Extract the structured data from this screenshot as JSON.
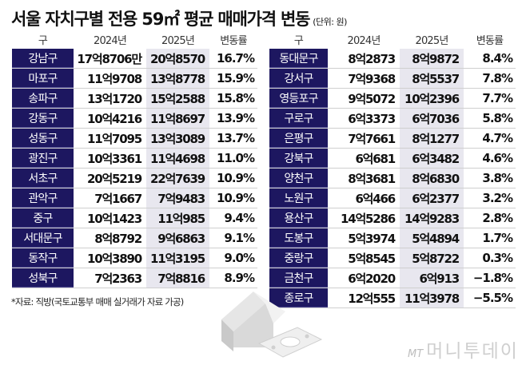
{
  "title": "서울 자치구별 전용 59㎡ 평균 매매가격 변동",
  "unit": "(단위: 원)",
  "headers": {
    "district": "구",
    "y2024": "2024년",
    "y2025": "2025년",
    "change": "변동률"
  },
  "left_rows": [
    {
      "district": "강남구",
      "y2024": "17억8706만",
      "y2025": "20억8570",
      "change": "16.7%"
    },
    {
      "district": "마포구",
      "y2024": "11억9708",
      "y2025": "13억8778",
      "change": "15.9%"
    },
    {
      "district": "송파구",
      "y2024": "13억1720",
      "y2025": "15억2588",
      "change": "15.8%"
    },
    {
      "district": "강동구",
      "y2024": "10억4216",
      "y2025": "11억8697",
      "change": "13.9%"
    },
    {
      "district": "성동구",
      "y2024": "11억7095",
      "y2025": "13억3089",
      "change": "13.7%"
    },
    {
      "district": "광진구",
      "y2024": "10억3361",
      "y2025": "11억4698",
      "change": "11.0%"
    },
    {
      "district": "서초구",
      "y2024": "20억5219",
      "y2025": "22억7639",
      "change": "10.9%"
    },
    {
      "district": "관악구",
      "y2024": "7억1667",
      "y2025": "7억9483",
      "change": "10.9%"
    },
    {
      "district": "중구",
      "y2024": "10억1423",
      "y2025": "11억985",
      "change": "9.4%"
    },
    {
      "district": "서대문구",
      "y2024": "8억8792",
      "y2025": "9억6863",
      "change": "9.1%"
    },
    {
      "district": "동작구",
      "y2024": "10억3890",
      "y2025": "11억3195",
      "change": "9.0%"
    },
    {
      "district": "성북구",
      "y2024": "7억2363",
      "y2025": "7억8816",
      "change": "8.9%"
    }
  ],
  "right_rows": [
    {
      "district": "동대문구",
      "y2024": "8억2873",
      "y2025": "8억9872",
      "change": "8.4%"
    },
    {
      "district": "강서구",
      "y2024": "7억9368",
      "y2025": "8억5537",
      "change": "7.8%"
    },
    {
      "district": "영등포구",
      "y2024": "9억5072",
      "y2025": "10억2396",
      "change": "7.7%"
    },
    {
      "district": "구로구",
      "y2024": "6억3373",
      "y2025": "6억7036",
      "change": "5.8%"
    },
    {
      "district": "은평구",
      "y2024": "7억7661",
      "y2025": "8억1277",
      "change": "4.7%"
    },
    {
      "district": "강북구",
      "y2024": "6억681",
      "y2025": "6억3482",
      "change": "4.6%"
    },
    {
      "district": "양천구",
      "y2024": "8억3681",
      "y2025": "8억6830",
      "change": "3.8%"
    },
    {
      "district": "노원구",
      "y2024": "6억466",
      "y2025": "6억2377",
      "change": "3.2%"
    },
    {
      "district": "용산구",
      "y2024": "14억5286",
      "y2025": "14억9283",
      "change": "2.8%"
    },
    {
      "district": "도봉구",
      "y2024": "5억3974",
      "y2025": "5억4894",
      "change": "1.7%"
    },
    {
      "district": "중랑구",
      "y2024": "5억8545",
      "y2025": "5억8722",
      "change": "0.3%"
    },
    {
      "district": "금천구",
      "y2024": "6억2020",
      "y2025": "6억913",
      "change": "−1.8%"
    },
    {
      "district": "종로구",
      "y2024": "12억555",
      "y2025": "11억3978",
      "change": "−5.5%"
    }
  ],
  "source": "*자료: 직방(국토교통부 매매 실거래가 자료 가공)",
  "logo": {
    "mt": "MT",
    "name": "머니투데이"
  },
  "colors": {
    "district_bg": "#1d1760",
    "y2025_bg": "#e8e7ef"
  },
  "chart_data": {
    "type": "table",
    "title": "서울 자치구별 전용 59㎡ 평균 매매가격 변동",
    "unit": "원",
    "columns": [
      "구",
      "2024년",
      "2025년",
      "변동률"
    ],
    "rows": [
      [
        "강남구",
        "17억8706만",
        "20억8570",
        16.7
      ],
      [
        "마포구",
        "11억9708",
        "13억8778",
        15.9
      ],
      [
        "송파구",
        "13억1720",
        "15억2588",
        15.8
      ],
      [
        "강동구",
        "10억4216",
        "11억8697",
        13.9
      ],
      [
        "성동구",
        "11억7095",
        "13억3089",
        13.7
      ],
      [
        "광진구",
        "10억3361",
        "11억4698",
        11.0
      ],
      [
        "서초구",
        "20억5219",
        "22억7639",
        10.9
      ],
      [
        "관악구",
        "7억1667",
        "7억9483",
        10.9
      ],
      [
        "중구",
        "10억1423",
        "11억985",
        9.4
      ],
      [
        "서대문구",
        "8억8792",
        "9억6863",
        9.1
      ],
      [
        "동작구",
        "10억3890",
        "11억3195",
        9.0
      ],
      [
        "성북구",
        "7억2363",
        "7억8816",
        8.9
      ],
      [
        "동대문구",
        "8억2873",
        "8억9872",
        8.4
      ],
      [
        "강서구",
        "7억9368",
        "8억5537",
        7.8
      ],
      [
        "영등포구",
        "9억5072",
        "10억2396",
        7.7
      ],
      [
        "구로구",
        "6억3373",
        "6억7036",
        5.8
      ],
      [
        "은평구",
        "7억7661",
        "8억1277",
        4.7
      ],
      [
        "강북구",
        "6억681",
        "6억3482",
        4.6
      ],
      [
        "양천구",
        "8억3681",
        "8억6830",
        3.8
      ],
      [
        "노원구",
        "6억466",
        "6억2377",
        3.2
      ],
      [
        "용산구",
        "14억5286",
        "14억9283",
        2.8
      ],
      [
        "도봉구",
        "5억3974",
        "5억4894",
        1.7
      ],
      [
        "중랑구",
        "5억8545",
        "5억8722",
        0.3
      ],
      [
        "금천구",
        "6억2020",
        "6억913",
        -1.8
      ],
      [
        "종로구",
        "12억555",
        "11억3978",
        -5.5
      ]
    ],
    "source": "직방(국토교통부 매매 실거래가 자료 가공)"
  }
}
